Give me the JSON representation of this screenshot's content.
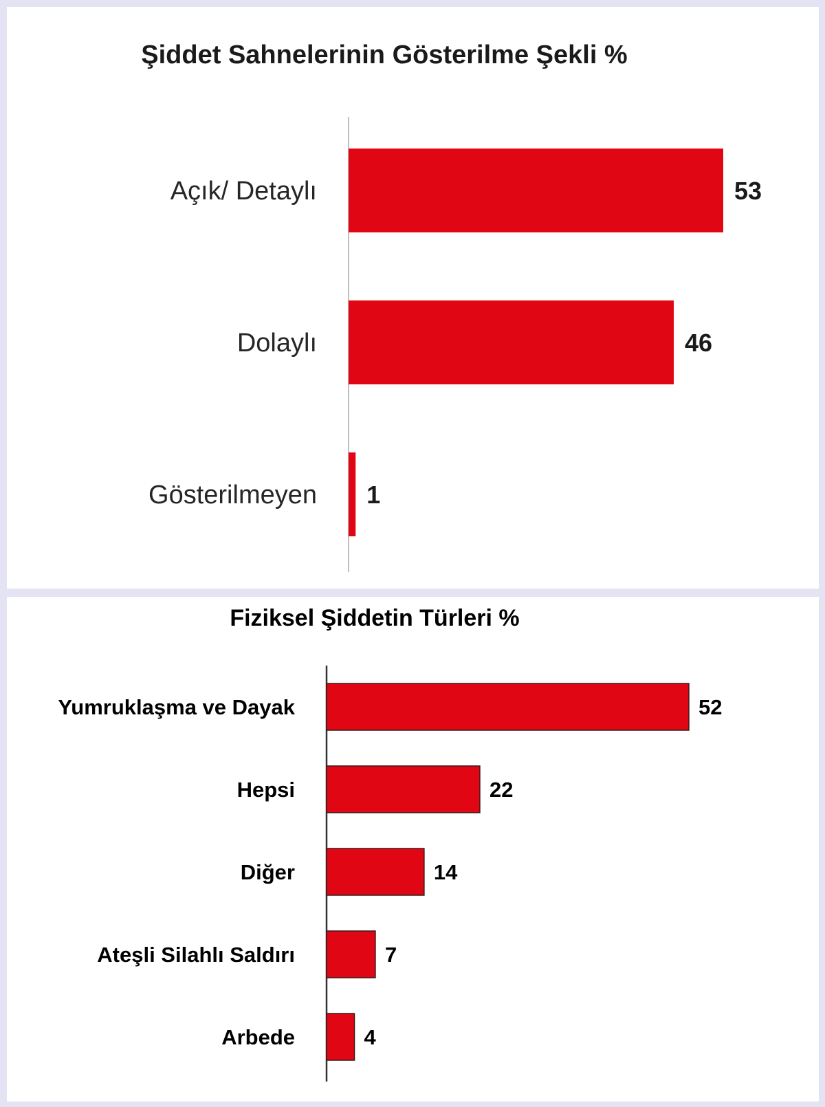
{
  "colors": {
    "bar": "#e10613",
    "bar_outline_2": "#3a1a1a",
    "axis": "#bfbfbf",
    "axis_2": "#333333"
  },
  "chart_data": [
    {
      "type": "bar",
      "orientation": "horizontal",
      "title": "Şiddet Sahnelerinin Gösterilme Şekli %",
      "categories": [
        "Açık/ Detaylı",
        "Dolaylı",
        "Gösterilmeyen"
      ],
      "values": [
        53,
        46,
        1
      ],
      "xlim": [
        0,
        53
      ],
      "grid": false,
      "legend": "none"
    },
    {
      "type": "bar",
      "orientation": "horizontal",
      "title": "Fiziksel Şiddetin Türleri %",
      "categories": [
        "Yumruklaşma ve Dayak",
        "Hepsi",
        "Diğer",
        "Ateşli Silahlı Saldırı",
        "Arbede"
      ],
      "values": [
        52,
        22,
        14,
        7,
        4
      ],
      "xlim": [
        0,
        52
      ],
      "grid": false,
      "legend": "none"
    }
  ]
}
